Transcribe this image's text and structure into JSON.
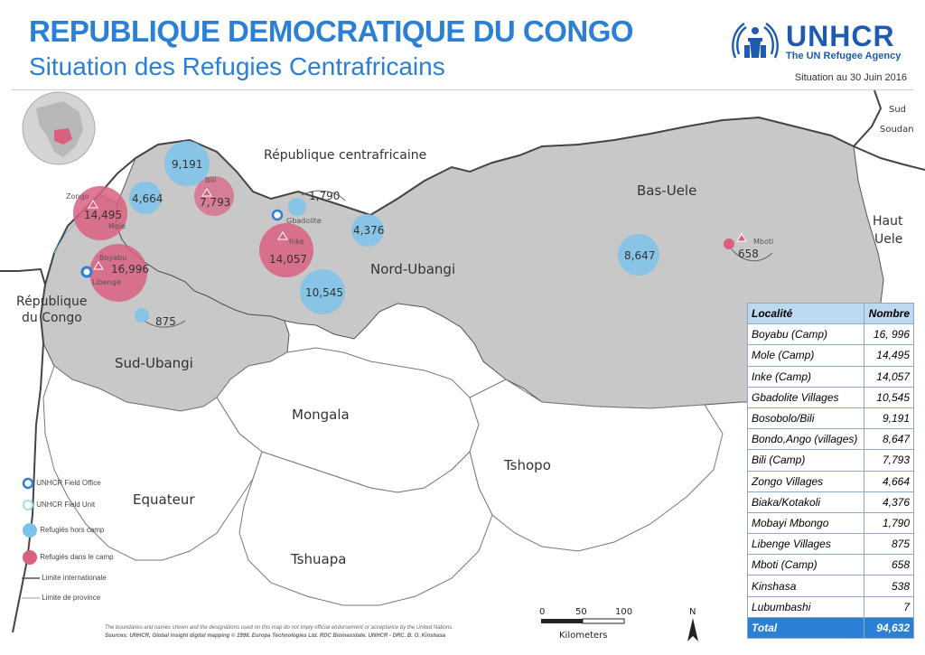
{
  "header": {
    "title": "REPUBLIQUE DEMOCRATIQUE DU CONGO",
    "subtitle": "Situation des Refugies Centrafricains",
    "date": "Situation au 30 Juin 2016"
  },
  "logo": {
    "name": "UNHCR",
    "tagline": "The UN Refugee Agency"
  },
  "regions": {
    "car": "République centrafricaine",
    "bas_uele": "Bas-Uele",
    "nord_ubangi": "Nord-Ubangi",
    "sud_ubangi": "Sud-Ubangi",
    "mongala": "Mongala",
    "tshopo": "Tshopo",
    "equateur": "Equateur",
    "tshuapa": "Tshuapa",
    "haut_uele_1": "Haut",
    "haut_uele_2": "Uele",
    "sud_soudan_1": "Sud",
    "sud_soudan_2": "Soudan",
    "rep_congo_1": "République",
    "rep_congo_2": "du Congo"
  },
  "sites": {
    "zongo": "Zongo",
    "mole": "Mole",
    "boyabu": "Boyabu",
    "libenge": "Libenge",
    "bili": "Bili",
    "gbadolite": "Gbadolite",
    "inke": "Inke",
    "mboti": "Mboti"
  },
  "values": {
    "v9191": "9,191",
    "v4664": "4,664",
    "v7793": "7,793",
    "v14495": "14,495",
    "v16996": "16,996",
    "v1790": "1,790",
    "v4376": "4,376",
    "v14057": "14,057",
    "v10545": "10,545",
    "v8647": "8,647",
    "v658": "658",
    "v875": "875"
  },
  "table": {
    "headers": [
      "Localité",
      "Nombre"
    ],
    "rows": [
      [
        "Boyabu (Camp)",
        "16, 996"
      ],
      [
        "Mole (Camp)",
        "14,495"
      ],
      [
        "Inke (Camp)",
        "14,057"
      ],
      [
        "Gbadolite Villages",
        "10,545"
      ],
      [
        "Bosobolo/Bili",
        "9,191"
      ],
      [
        "Bondo,Ango (villages)",
        "8,647"
      ],
      [
        "Bili (Camp)",
        "7,793"
      ],
      [
        "Zongo Villages",
        "4,664"
      ],
      [
        "Biaka/Kotakoli",
        "4,376"
      ],
      [
        "Mobayi Mbongo",
        "1,790"
      ],
      [
        "Libenge Villages",
        "875"
      ],
      [
        "Mboti (Camp)",
        "658"
      ],
      [
        "Kinshasa",
        "538"
      ],
      [
        "Lubumbashi",
        "7"
      ]
    ],
    "total_label": "Total",
    "total_value": "94,632"
  },
  "legend": {
    "field_office": "UNHCR Field Office",
    "field_unit": "UNHCR Field Unit",
    "outside_camp": "Refugiés hors camp",
    "in_camp": "Refugiés dans le camp",
    "intl_boundary": "Limite internationale",
    "prov_boundary": "Limite de province"
  },
  "scale": {
    "t0": "0",
    "t1": "50",
    "t2": "100",
    "unit": "Kilometers"
  },
  "north": "N",
  "sources": {
    "disclaimer": "The boundaries and names shown and the designations used on this map do not imply official endorsement or acceptance by the United Nations.",
    "credits": "Sources: UNHCR, Global Insight digital mapping © 1998. Europa Technologies Ltd. RDC Biomasstate. UNHCR - DRC. B. O. Kinshasa"
  },
  "colors": {
    "accent": "#2b7fd4",
    "outside_camp": "#7cc3ea",
    "in_camp": "#d9607f",
    "province_fill": "#c8c8c8",
    "table_header": "#bcd9ef"
  }
}
